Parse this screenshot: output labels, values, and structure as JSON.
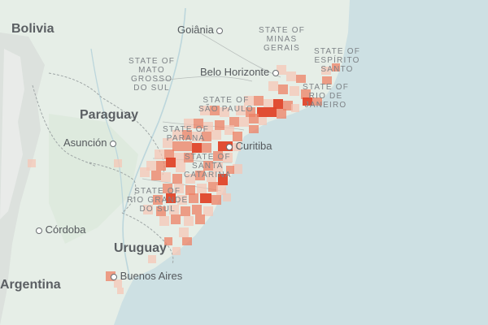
{
  "map": {
    "colors": {
      "water": "#cde0e3",
      "land": "#e6eee7",
      "heat_low": "#f6c4b3",
      "heat_mid": "#ee8064",
      "heat_high": "#e0452a"
    },
    "countries": [
      "Bolivia",
      "Paraguay",
      "Uruguay",
      "Argentina"
    ],
    "states": [
      {
        "lines": [
          "STATE OF",
          "MINAS",
          "GERAIS"
        ]
      },
      {
        "lines": [
          "STATE OF",
          "ESPÍRITO",
          "SANTO"
        ]
      },
      {
        "lines": [
          "STATE OF",
          "MATO",
          "GROSSO",
          "DO SUL"
        ]
      },
      {
        "lines": [
          "STATE OF",
          "RIO DE",
          "JANEIRO"
        ]
      },
      {
        "lines": [
          "STATE OF",
          "SÃO PAULO"
        ]
      },
      {
        "lines": [
          "STATE OF",
          "PARANÁ"
        ]
      },
      {
        "lines": [
          "STATE OF",
          "SANTA",
          "CATARINA"
        ]
      },
      {
        "lines": [
          "STATE OF",
          "RIO GRANDE",
          "DO SUL"
        ]
      }
    ],
    "cities": [
      "Goiânia",
      "Belo Horizonte",
      "Asunción",
      "Curitiba",
      "Córdoba",
      "Buenos Aires"
    ]
  }
}
